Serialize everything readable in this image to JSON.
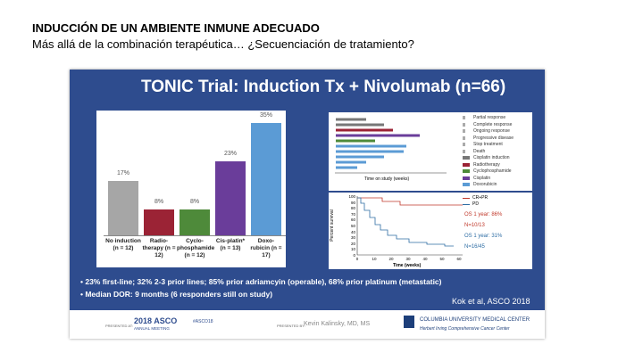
{
  "header": {
    "title": "INDUCCIÓN DE UN AMBIENTE INMUNE ADECUADO",
    "subtitle": "Más allá de la combinación terapéutica… ¿Secuenciación de tratamiento?"
  },
  "slide": {
    "title": "TONIC Trial: Induction Tx + Nivolumab (n=66)",
    "bullets": [
      "23% first-line; 32% 2-3 prior lines; 85% prior adriamcyin (operable), 68% prior platinum (metastatic)",
      "Median DOR: 9 months (6 responders still on study)"
    ],
    "citation": "Kok et al, ASCO 2018",
    "swimmer": {
      "axis_label": "Time on study (weeks)",
      "legend": [
        "Partial response",
        "Complete response",
        "Ongoing response",
        "Progressive disease",
        "Stop treatment",
        "Death",
        "Cisplatin induction",
        "Radiotherapy",
        "Cyclophosphamide",
        "Cisplatin",
        "Doxorubicin"
      ]
    },
    "survival": {
      "y_label": "Percent survival",
      "x_label": "Time (weeks)",
      "yticks": [
        "100",
        "90",
        "80",
        "70",
        "60",
        "50",
        "40",
        "30",
        "20",
        "10",
        "0"
      ],
      "xticks": [
        "0",
        "10",
        "20",
        "30",
        "40",
        "50",
        "60"
      ],
      "legend": [
        "CR+PR",
        "PD"
      ],
      "notes": [
        "OS 1 year: 86%",
        "N=10/13",
        "OS 1 year: 31%",
        "N=16/45"
      ]
    },
    "footer": {
      "presented_at": "PRESENTED AT:",
      "meeting": "2018 ASCO",
      "meeting_sub": "ANNUAL MEETING",
      "hashtag": "#ASCO18",
      "presented_by": "PRESENTED BY:",
      "presenter": "Kevin Kalinsky, MD, MS",
      "institution": "COLUMBIA UNIVERSITY MEDICAL CENTER",
      "institution_sub": "Herbert Irving Comprehensive Cancer Center"
    }
  },
  "chart_data": {
    "type": "bar",
    "categories": [
      "No induction (n = 12)",
      "Radio-therapy (n = 12)",
      "Cyclo-phosphamide (n = 12)",
      "Cis-platin* (n = 13)",
      "Doxo-rubicin (n = 17)"
    ],
    "values": [
      17,
      8,
      8,
      23,
      35
    ],
    "value_labels": [
      "17%",
      "8%",
      "8%",
      "23%",
      "35%"
    ],
    "colors": [
      "#a6a6a6",
      "#9b2335",
      "#4e8a3a",
      "#6a3d9a",
      "#5b9bd5"
    ]
  }
}
